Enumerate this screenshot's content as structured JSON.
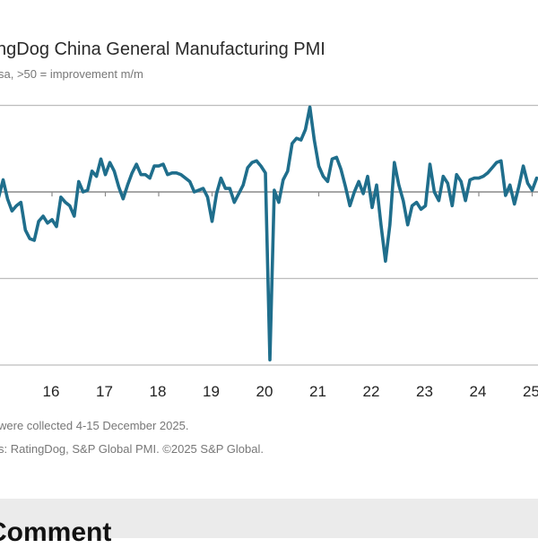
{
  "header": {
    "title": "ngDog China General Manufacturing PMI",
    "subtitle": "sa, >50 = improvement m/m"
  },
  "footer": {
    "note": "were collected 4-15 December 2025.",
    "source": "s: RatingDog, S&P Global PMI. ©2025 S&P Global."
  },
  "section": {
    "heading": "Comment"
  },
  "chart_data": {
    "type": "line",
    "title": "ngDog China General Manufacturing PMI",
    "subtitle": "sa, >50 = improvement m/m",
    "ylim": [
      40,
      55
    ],
    "gridlines": [
      40,
      45,
      50,
      55
    ],
    "reference_line": 50,
    "grid": true,
    "x_tick_labels": [
      "5",
      "16",
      "17",
      "18",
      "19",
      "20",
      "21",
      "22",
      "23",
      "24",
      "25"
    ],
    "x_tick_years": [
      2015,
      2016,
      2017,
      2018,
      2019,
      2020,
      2021,
      2022,
      2023,
      2024,
      2025
    ],
    "line_color": "#1f6e8c",
    "start": "2015-01",
    "frequency": "monthly",
    "series": [
      {
        "values": [
          49.7,
          50.7,
          49.6,
          48.9,
          49.2,
          49.4,
          47.8,
          47.3,
          47.2,
          48.3,
          48.6,
          48.2,
          48.4,
          48.0,
          49.7,
          49.4,
          49.2,
          48.6,
          50.6,
          50.0,
          50.1,
          51.2,
          50.9,
          51.9,
          51.0,
          51.7,
          51.2,
          50.3,
          49.6,
          50.4,
          51.1,
          51.6,
          51.0,
          51.0,
          50.8,
          51.5,
          51.5,
          51.6,
          51.0,
          51.1,
          51.1,
          51.0,
          50.8,
          50.6,
          50.0,
          50.1,
          50.2,
          49.7,
          48.3,
          49.9,
          50.8,
          50.2,
          50.2,
          49.4,
          49.9,
          50.4,
          51.4,
          51.7,
          51.8,
          51.5,
          51.1,
          40.3,
          50.1,
          49.4,
          50.7,
          51.2,
          52.8,
          53.1,
          53.0,
          53.6,
          54.9,
          53.0,
          51.5,
          50.9,
          50.6,
          51.9,
          52.0,
          51.3,
          50.3,
          49.2,
          50.0,
          50.6,
          49.9,
          50.9,
          49.1,
          50.4,
          48.1,
          46.0,
          48.1,
          51.7,
          50.4,
          49.5,
          48.1,
          49.2,
          49.4,
          49.0,
          49.2,
          51.6,
          50.0,
          49.5,
          50.9,
          50.5,
          49.2,
          51.0,
          50.6,
          49.5,
          50.7,
          50.8,
          50.8,
          50.9,
          51.1,
          51.4,
          51.7,
          51.8,
          49.8,
          50.4,
          49.3,
          50.3,
          51.5,
          50.5,
          50.1,
          50.8
        ]
      }
    ]
  }
}
